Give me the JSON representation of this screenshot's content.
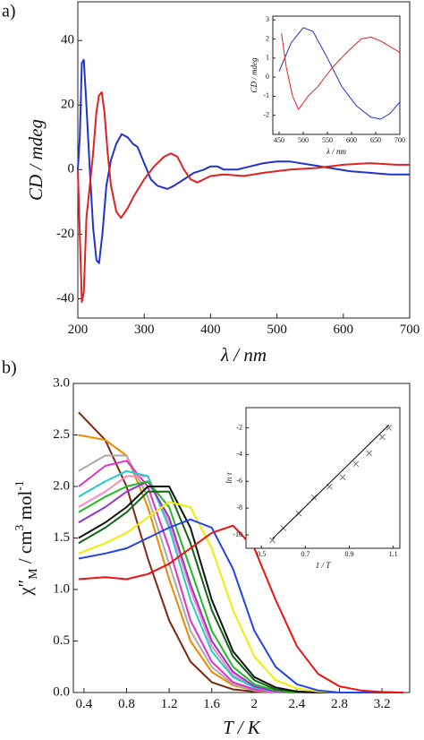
{
  "panel_labels": [
    "a)",
    "b)"
  ],
  "chart_data": [
    {
      "type": "line",
      "xlabel": "λ / nm",
      "ylabel": "CD / mdeg",
      "xlim": [
        200,
        700
      ],
      "ylim": [
        -46,
        52
      ],
      "xticks": [
        200,
        300,
        400,
        500,
        600,
        700
      ],
      "yticks": [
        -40,
        -20,
        0,
        20,
        40
      ],
      "series": [
        {
          "color": "#2233cc",
          "x": [
            200,
            203,
            206,
            209,
            213,
            218,
            223,
            228,
            232,
            237,
            243,
            250,
            258,
            266,
            275,
            283,
            290,
            300,
            310,
            320,
            335,
            345,
            360,
            375,
            390,
            400,
            410,
            420,
            440,
            460,
            480,
            500,
            520,
            550,
            580,
            610,
            640,
            670,
            700
          ],
          "values": [
            0,
            10,
            33,
            34,
            20,
            0,
            -18,
            -28,
            -29,
            -20,
            -5,
            3,
            8,
            11,
            10,
            8,
            7,
            2,
            -3,
            -5,
            -6,
            -5,
            -3,
            -1,
            0,
            1,
            1,
            0,
            0,
            1,
            2,
            2.5,
            2.5,
            1.5,
            0.5,
            -0.5,
            -1,
            -1.5,
            -1.5
          ]
        },
        {
          "color": "#dd2222",
          "x": [
            200,
            203,
            206,
            209,
            213,
            218,
            223,
            228,
            232,
            236,
            240,
            245,
            250,
            258,
            265,
            275,
            285,
            300,
            315,
            330,
            340,
            350,
            360,
            370,
            380,
            390,
            400,
            420,
            450,
            480,
            520,
            560,
            600,
            640,
            680,
            700
          ],
          "values": [
            0,
            -20,
            -41,
            -38,
            -15,
            -5,
            5,
            18,
            23,
            24,
            18,
            5,
            -5,
            -13,
            -15,
            -12,
            -8,
            -3,
            1,
            4,
            5,
            4,
            0,
            -3,
            -4,
            -3,
            -2,
            -1.5,
            -2,
            -1,
            0,
            0.5,
            1.5,
            2,
            1.5,
            1.5
          ]
        }
      ]
    },
    {
      "type": "line",
      "xlabel": "λ / nm",
      "ylabel": "CD / mdeg",
      "xlim": [
        437,
        700
      ],
      "ylim": [
        -3,
        3.2
      ],
      "xticks": [
        450,
        500,
        550,
        600,
        650,
        700
      ],
      "yticks": [
        -2,
        -1,
        0,
        1,
        2,
        3
      ],
      "series": [
        {
          "color": "#2233cc",
          "x": [
            450,
            475,
            500,
            520,
            550,
            580,
            610,
            640,
            660,
            680,
            700
          ],
          "values": [
            0.3,
            1.8,
            2.6,
            2.4,
            1,
            -0.5,
            -1.5,
            -2.1,
            -2.2,
            -1.9,
            -1.3
          ]
        },
        {
          "color": "#dd2222",
          "x": [
            455,
            465,
            478,
            490,
            510,
            530,
            560,
            590,
            620,
            640,
            660,
            680,
            700
          ],
          "values": [
            2.3,
            0.5,
            -1,
            -1.7,
            -1,
            -0.5,
            0.5,
            1.3,
            2,
            2.1,
            1.9,
            1.6,
            1.3
          ]
        }
      ]
    },
    {
      "type": "line",
      "xlabel": "T / K",
      "ylabel_parts": [
        {
          "text": "χ″",
          "shift": "none"
        },
        {
          "text": "M",
          "shift": "sub"
        },
        {
          "text": " / cm",
          "shift": "none"
        },
        {
          "text": "3",
          "shift": "super"
        },
        {
          "text": " mol",
          "shift": "none"
        },
        {
          "text": "-1",
          "shift": "super"
        }
      ],
      "xlim": [
        0.3,
        3.46
      ],
      "ylim": [
        0,
        3
      ],
      "xticks": [
        0.4,
        0.8,
        1.2,
        1.6,
        2,
        2.4,
        2.8,
        3.2
      ],
      "yticks": [
        {
          "value": 0,
          "label": "0.0"
        },
        0.5,
        {
          "value": 1,
          "label": "1.0"
        },
        1.5,
        {
          "value": 2,
          "label": "2.0"
        },
        2.5,
        {
          "value": 3,
          "label": "3.0"
        }
      ],
      "x": [
        0.35,
        0.6,
        0.8,
        1.0,
        1.2,
        1.4,
        1.6,
        1.8,
        2.0,
        2.2,
        2.4,
        2.6,
        2.8,
        3.0,
        3.2,
        3.4
      ],
      "series": [
        {
          "color": "#7a2a10",
          "values": [
            2.72,
            2.45,
            2.0,
            1.3,
            0.7,
            0.3,
            0.1,
            0.03,
            0.01,
            0,
            0,
            0,
            0,
            0,
            0,
            0
          ]
        },
        {
          "color": "#ee8800",
          "values": [
            2.5,
            2.45,
            2.3,
            1.8,
            1.1,
            0.5,
            0.2,
            0.07,
            0.02,
            0,
            0,
            0,
            0,
            0,
            0,
            0
          ]
        },
        {
          "color": "#aaaaaa",
          "values": [
            2.15,
            2.3,
            2.3,
            1.9,
            1.25,
            0.6,
            0.25,
            0.08,
            0.02,
            0,
            0,
            0,
            0,
            0,
            0,
            0
          ]
        },
        {
          "color": "#dd33cc",
          "values": [
            2.0,
            2.2,
            2.25,
            2.0,
            1.4,
            0.7,
            0.3,
            0.1,
            0.03,
            0,
            0,
            0,
            0,
            0,
            0,
            0
          ]
        },
        {
          "color": "#ff88bb",
          "values": [
            1.8,
            1.95,
            2.1,
            2.1,
            1.65,
            1.0,
            0.45,
            0.17,
            0.05,
            0,
            0,
            0,
            0,
            0,
            0,
            0
          ]
        },
        {
          "color": "#22cccc",
          "values": [
            1.9,
            2.05,
            2.15,
            2.1,
            1.6,
            0.9,
            0.4,
            0.15,
            0.05,
            0.01,
            0,
            0,
            0,
            0,
            0,
            0
          ]
        },
        {
          "color": "#9933cc",
          "values": [
            1.65,
            1.8,
            1.95,
            2.05,
            1.7,
            1.05,
            0.5,
            0.2,
            0.06,
            0.01,
            0,
            0,
            0,
            0,
            0,
            0
          ]
        },
        {
          "color": "#22bb22",
          "values": [
            1.75,
            1.9,
            2.0,
            2.05,
            1.8,
            1.2,
            0.6,
            0.25,
            0.08,
            0.02,
            0,
            0,
            0,
            0,
            0,
            0
          ]
        },
        {
          "color": "#116611",
          "values": [
            1.45,
            1.6,
            1.75,
            1.95,
            1.95,
            1.45,
            0.8,
            0.35,
            0.12,
            0.03,
            0.01,
            0,
            0,
            0,
            0,
            0
          ]
        },
        {
          "color": "#111111",
          "values": [
            1.5,
            1.65,
            1.8,
            2.0,
            2.0,
            1.6,
            0.9,
            0.4,
            0.15,
            0.05,
            0.01,
            0,
            0,
            0,
            0,
            0
          ]
        },
        {
          "color": "#eeee00",
          "values": [
            1.35,
            1.45,
            1.55,
            1.7,
            1.85,
            1.8,
            1.4,
            0.8,
            0.35,
            0.12,
            0.04,
            0.01,
            0,
            0,
            0,
            0
          ]
        },
        {
          "color": "#2244ee",
          "values": [
            1.3,
            1.35,
            1.4,
            1.5,
            1.6,
            1.68,
            1.6,
            1.2,
            0.6,
            0.25,
            0.08,
            0.02,
            0,
            0,
            0,
            0
          ]
        },
        {
          "color": "#ee1111",
          "values": [
            1.1,
            1.12,
            1.1,
            1.15,
            1.25,
            1.4,
            1.55,
            1.62,
            1.4,
            0.9,
            0.45,
            0.18,
            0.06,
            0.02,
            0.005,
            0
          ]
        }
      ]
    },
    {
      "type": "scatter",
      "xlabel": "1 / T",
      "ylabel": "ln τ",
      "xlim": [
        0.43,
        1.13
      ],
      "ylim": [
        -11,
        -0.5
      ],
      "xticks": [
        0.5,
        0.7,
        0.9,
        1.1
      ],
      "yticks": [
        -10,
        -8,
        -6,
        -4,
        -2
      ],
      "series": [
        {
          "color": "#777777",
          "marker": "x",
          "x": [
            0.55,
            0.6,
            0.67,
            0.74,
            0.81,
            0.87,
            0.93,
            0.99,
            1.05,
            1.08
          ],
          "values": [
            -10.4,
            -9.5,
            -8.4,
            -7.2,
            -6.4,
            -5.7,
            -4.7,
            -3.9,
            -2.7,
            -2.0
          ]
        },
        {
          "color": "#000000",
          "marker": "line",
          "x": [
            0.55,
            1.08
          ],
          "values": [
            -10.3,
            -1.8
          ]
        }
      ]
    }
  ]
}
